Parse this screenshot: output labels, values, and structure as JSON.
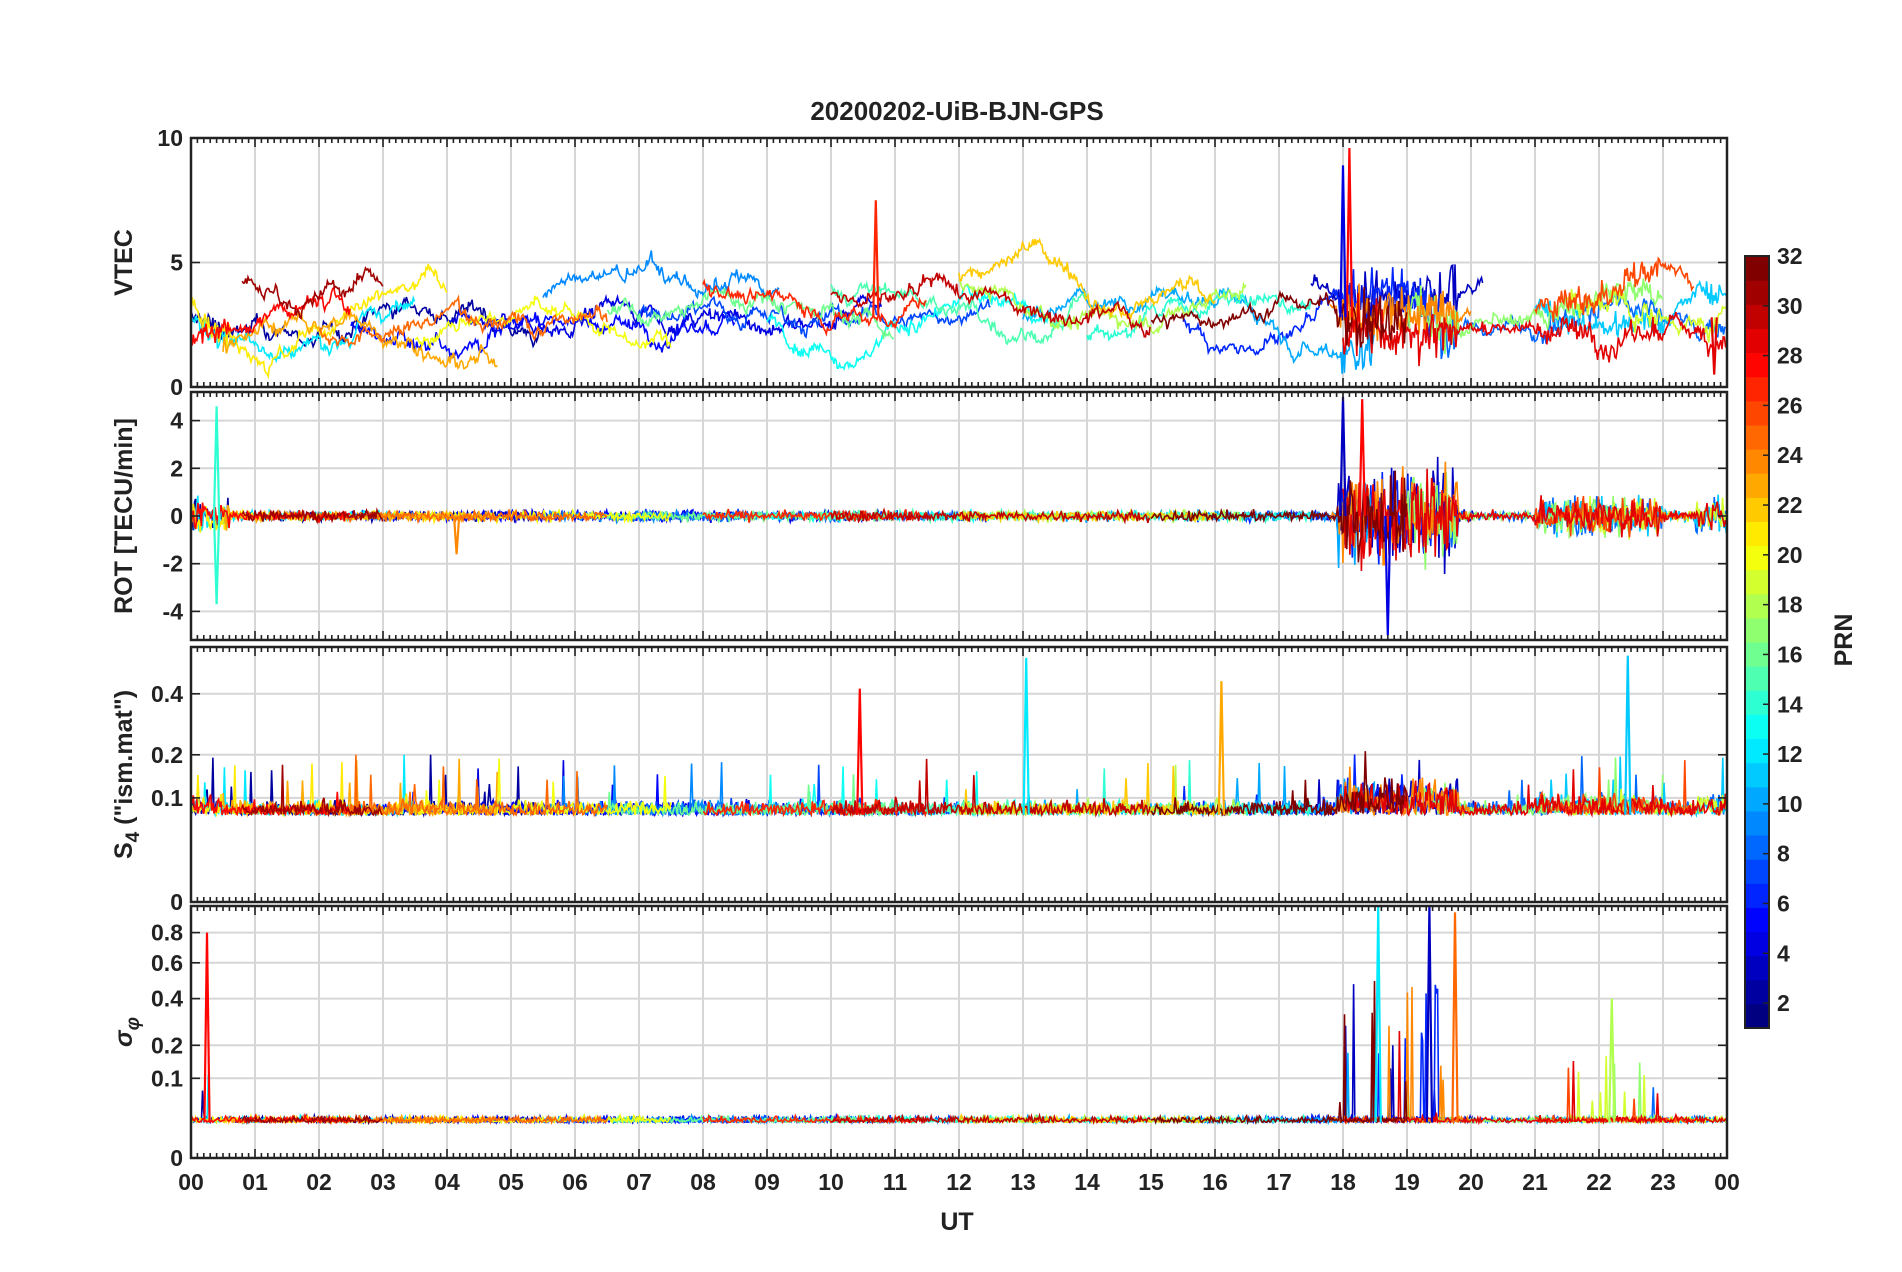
{
  "chart_data": {
    "type": "line",
    "title": "20200202-UiB-BJN-GPS",
    "xlabel": "UT",
    "x_range_hours": [
      0,
      24
    ],
    "x_tick_labels": [
      "00",
      "01",
      "02",
      "03",
      "04",
      "05",
      "06",
      "07",
      "08",
      "09",
      "10",
      "11",
      "12",
      "13",
      "14",
      "15",
      "16",
      "17",
      "18",
      "19",
      "20",
      "21",
      "22",
      "23",
      "00"
    ],
    "grid": true,
    "colormap": "jet",
    "colorbar": {
      "label": "PRN",
      "range": [
        1,
        32
      ],
      "tick_values": [
        2,
        4,
        6,
        8,
        10,
        12,
        14,
        16,
        18,
        20,
        22,
        24,
        26,
        28,
        30,
        32
      ],
      "tick_labels": [
        "2",
        "4",
        "6",
        "8",
        "10",
        "12",
        "14",
        "16",
        "18",
        "20",
        "22",
        "24",
        "26",
        "28",
        "30",
        "32"
      ],
      "placement": "right"
    },
    "panels": [
      {
        "id": "vtec",
        "ylabel": "VTEC",
        "ylim": [
          0,
          10
        ],
        "y_tick_values": [
          0,
          5,
          10
        ],
        "y_tick_labels": [
          "0",
          "5",
          "10"
        ],
        "baseline": 2.8,
        "series_description_note": ""
      },
      {
        "id": "rot",
        "ylabel": "ROT [TECU/min]",
        "ylim": [
          -5.2,
          5.2
        ],
        "y_tick_values": [
          -4,
          -2,
          0,
          2,
          4
        ],
        "y_tick_labels": [
          "-4",
          "-2",
          "0",
          "2",
          "4"
        ],
        "baseline": 0
      },
      {
        "id": "s4",
        "ylabel_main": "S",
        "ylabel_sub": "4",
        "ylabel_rest": " (\"ism.mat\")",
        "ylim": [
          0,
          0.6
        ],
        "scale": "sqrt",
        "y_tick_values": [
          0,
          0.1,
          0.2,
          0.4
        ],
        "y_tick_labels": [
          "0",
          "0.1",
          "0.2",
          "0.4"
        ],
        "baseline": 0.07
      },
      {
        "id": "sigma",
        "ylabel_main": "σ",
        "ylabel_sub": "φ",
        "ylim": [
          0,
          1
        ],
        "scale": "sqrt",
        "y_tick_values": [
          0,
          0.1,
          0.2,
          0.4,
          0.6,
          0.8
        ],
        "y_tick_labels": [
          "0",
          "0.1",
          "0.2",
          "0.4",
          "0.6",
          "0.8"
        ],
        "baseline": 0.02
      }
    ],
    "disturbed_interval_hours": [
      17.9,
      19.8
    ],
    "traces": [
      {
        "prn": 2,
        "span": [
          0.0,
          5.5
        ],
        "vtec_level": 2.4
      },
      {
        "prn": 3,
        "span": [
          17.5,
          20.2
        ],
        "vtec_level": 3.6
      },
      {
        "prn": 4,
        "span": [
          4.0,
          10.8
        ],
        "vtec_level": 3.0
      },
      {
        "prn": 5,
        "span": [
          2.5,
          8.5
        ],
        "vtec_level": 2.6
      },
      {
        "prn": 6,
        "span": [
          15.5,
          19.5
        ],
        "vtec_level": 2.6
      },
      {
        "prn": 7,
        "span": [
          7.0,
          12.5
        ],
        "vtec_level": 3.4
      },
      {
        "prn": 8,
        "span": [
          19.5,
          24.0
        ],
        "vtec_level": 2.8
      },
      {
        "prn": 9,
        "span": [
          5.5,
          9.2
        ],
        "vtec_level": 3.8
      },
      {
        "prn": 10,
        "span": [
          13.0,
          18.5
        ],
        "vtec_level": 3.2
      },
      {
        "prn": 11,
        "span": [
          21.0,
          24.0
        ],
        "vtec_level": 3.5
      },
      {
        "prn": 12,
        "span": [
          0.0,
          3.5
        ],
        "vtec_level": 2.8
      },
      {
        "prn": 13,
        "span": [
          9.0,
          13.5
        ],
        "vtec_level": 3.0
      },
      {
        "prn": 14,
        "span": [
          14.0,
          17.5
        ],
        "vtec_level": 2.6
      },
      {
        "prn": 15,
        "span": [
          10.0,
          14.0
        ],
        "vtec_level": 3.5
      },
      {
        "prn": 16,
        "span": [
          6.5,
          11.0
        ],
        "vtec_level": 3.2
      },
      {
        "prn": 17,
        "span": [
          19.0,
          23.0
        ],
        "vtec_level": 2.8
      },
      {
        "prn": 18,
        "span": [
          12.0,
          16.5
        ],
        "vtec_level": 3.6
      },
      {
        "prn": 19,
        "span": [
          21.5,
          24.0
        ],
        "vtec_level": 3.2
      },
      {
        "prn": 20,
        "span": [
          3.5,
          7.5
        ],
        "vtec_level": 2.5
      },
      {
        "prn": 21,
        "span": [
          0.0,
          4.0
        ],
        "vtec_level": 3.2
      },
      {
        "prn": 22,
        "span": [
          12.0,
          16.0
        ],
        "vtec_level": 4.4
      },
      {
        "prn": 23,
        "span": [
          0.5,
          4.8
        ],
        "vtec_level": 2.2
      },
      {
        "prn": 24,
        "span": [
          17.8,
          20.0
        ],
        "vtec_level": 3.8
      },
      {
        "prn": 25,
        "span": [
          2.0,
          6.5
        ],
        "vtec_level": 2.7
      },
      {
        "prn": 26,
        "span": [
          21.0,
          23.5
        ],
        "vtec_level": 3.6
      },
      {
        "prn": 27,
        "span": [
          8.0,
          11.5
        ],
        "vtec_level": 3.5
      },
      {
        "prn": 28,
        "span": [
          0.0,
          2.5
        ],
        "vtec_level": 2.6
      },
      {
        "prn": 29,
        "span": [
          18.0,
          24.0
        ],
        "vtec_level": 2.6
      },
      {
        "prn": 30,
        "span": [
          10.0,
          15.0
        ],
        "vtec_level": 3.2
      },
      {
        "prn": 31,
        "span": [
          0.8,
          3.0
        ],
        "vtec_level": 4.3
      },
      {
        "prn": 32,
        "span": [
          15.0,
          19.0
        ],
        "vtec_level": 3.0
      }
    ],
    "notable_peaks": [
      {
        "panel": "vtec",
        "prn": 27,
        "x": 10.7,
        "y": 7.5
      },
      {
        "panel": "vtec",
        "prn": 28,
        "x": 18.1,
        "y": 9.6
      },
      {
        "panel": "vtec",
        "prn": 4,
        "x": 18.0,
        "y": 8.9
      },
      {
        "panel": "vtec",
        "prn": 29,
        "x": 23.8,
        "y": 0.5
      },
      {
        "panel": "rot",
        "prn": 14,
        "x": 0.4,
        "y": 4.6
      },
      {
        "panel": "rot",
        "prn": 14,
        "x": 0.4,
        "y": -3.7
      },
      {
        "panel": "rot",
        "prn": 24,
        "x": 4.15,
        "y": -1.6
      },
      {
        "panel": "rot",
        "prn": 3,
        "x": 18.0,
        "y": 5.0
      },
      {
        "panel": "rot",
        "prn": 28,
        "x": 18.3,
        "y": 4.9
      },
      {
        "panel": "rot",
        "prn": 4,
        "x": 18.7,
        "y": -5.0
      },
      {
        "panel": "s4",
        "prn": 12,
        "x": 13.05,
        "y": 0.55
      },
      {
        "panel": "s4",
        "prn": 11,
        "x": 22.45,
        "y": 0.56
      },
      {
        "panel": "s4",
        "prn": 28,
        "x": 10.45,
        "y": 0.42
      },
      {
        "panel": "s4",
        "prn": 23,
        "x": 16.1,
        "y": 0.45
      },
      {
        "panel": "sigma",
        "prn": 28,
        "x": 0.25,
        "y": 0.8
      },
      {
        "panel": "sigma",
        "prn": 12,
        "x": 18.55,
        "y": 1.0
      },
      {
        "panel": "sigma",
        "prn": 3,
        "x": 19.35,
        "y": 1.0
      },
      {
        "panel": "sigma",
        "prn": 25,
        "x": 19.75,
        "y": 0.95
      },
      {
        "panel": "sigma",
        "prn": 18,
        "x": 22.2,
        "y": 0.4
      }
    ]
  }
}
